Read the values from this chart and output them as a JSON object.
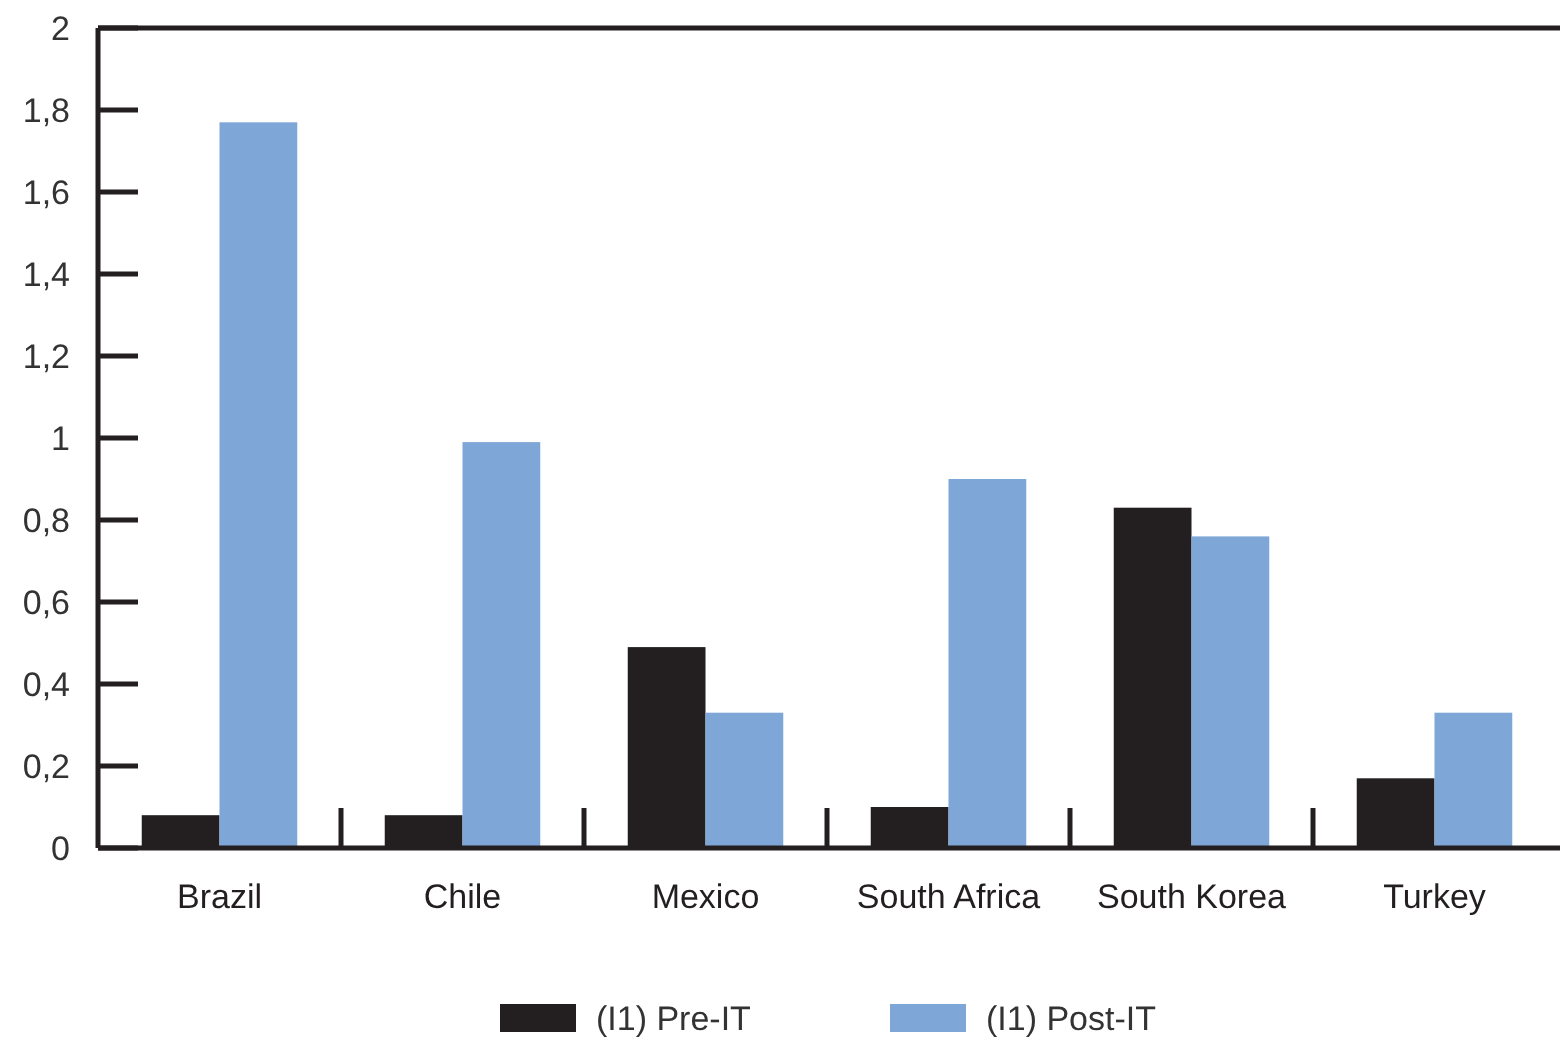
{
  "chart_data": {
    "type": "bar",
    "categories": [
      "Brazil",
      "Chile",
      "Mexico",
      "South Africa",
      "South Korea",
      "Turkey"
    ],
    "series": [
      {
        "name": "(I1) Pre-IT",
        "color": "#231f20",
        "values": [
          0.08,
          0.08,
          0.49,
          0.1,
          0.83,
          0.17
        ]
      },
      {
        "name": "(I1) Post-IT",
        "color": "#7ea7d8",
        "values": [
          1.77,
          0.99,
          0.33,
          0.9,
          0.76,
          0.33
        ]
      }
    ],
    "ylim": [
      0,
      2
    ],
    "yticks": [
      0,
      {
        "value": 0.2,
        "label": "0,2"
      },
      {
        "value": 0.4,
        "label": "0,4"
      },
      {
        "value": 0.6,
        "label": "0,6"
      },
      {
        "value": 0.8,
        "label": "0,8"
      },
      1,
      {
        "value": 1.2,
        "label": "1,2"
      },
      {
        "value": 1.4,
        "label": "1,4"
      },
      {
        "value": 1.6,
        "label": "1,6"
      },
      {
        "value": 1.8,
        "label": "1,8"
      },
      2
    ],
    "grid": false,
    "legend": "bottom"
  }
}
